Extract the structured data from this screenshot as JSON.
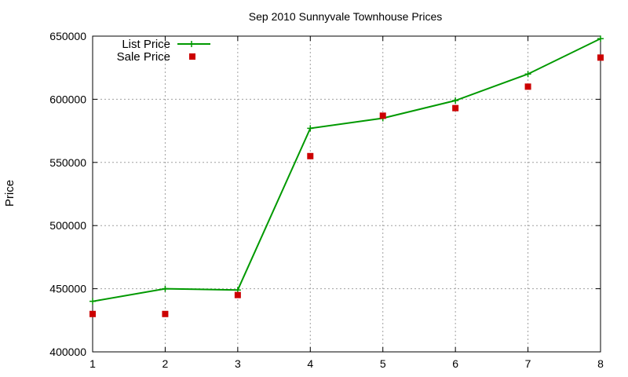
{
  "chart_data": {
    "type": "line",
    "title": "Sep 2010 Sunnyvale Townhouse Prices",
    "xlabel": "",
    "ylabel": "Price",
    "x": [
      1,
      2,
      3,
      4,
      5,
      6,
      7,
      8
    ],
    "xlim": [
      1,
      8
    ],
    "ylim": [
      400000,
      650000
    ],
    "xticks": [
      "1",
      "2",
      "3",
      "4",
      "5",
      "6",
      "7",
      "8"
    ],
    "yticks": [
      "400000",
      "450000",
      "500000",
      "550000",
      "600000",
      "650000"
    ],
    "grid": true,
    "legend_position": "top-left",
    "series": [
      {
        "name": "List Price",
        "style": "line-with-plus-markers",
        "color": "#009900",
        "values": [
          440000,
          450000,
          449000,
          577000,
          585000,
          599000,
          620000,
          648000
        ]
      },
      {
        "name": "Sale Price",
        "style": "square-points",
        "color": "#cc0000",
        "values": [
          430000,
          430000,
          445000,
          555000,
          587000,
          593000,
          610000,
          633000
        ]
      }
    ]
  }
}
